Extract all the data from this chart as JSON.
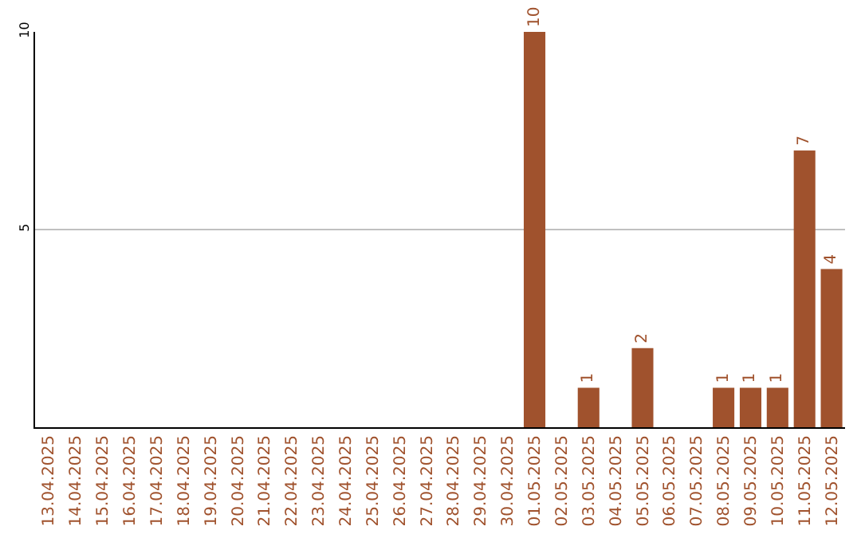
{
  "chart_data": {
    "type": "bar",
    "categories": [
      "13.04.2025",
      "14.04.2025",
      "15.04.2025",
      "16.04.2025",
      "17.04.2025",
      "18.04.2025",
      "19.04.2025",
      "20.04.2025",
      "21.04.2025",
      "22.04.2025",
      "23.04.2025",
      "24.04.2025",
      "25.04.2025",
      "26.04.2025",
      "27.04.2025",
      "28.04.2025",
      "29.04.2025",
      "30.04.2025",
      "01.05.2025",
      "02.05.2025",
      "03.05.2025",
      "04.05.2025",
      "05.05.2025",
      "06.05.2025",
      "07.05.2025",
      "08.05.2025",
      "09.05.2025",
      "10.05.2025",
      "11.05.2025",
      "12.05.2025"
    ],
    "values": [
      0,
      0,
      0,
      0,
      0,
      0,
      0,
      0,
      0,
      0,
      0,
      0,
      0,
      0,
      0,
      0,
      0,
      0,
      10,
      0,
      1,
      0,
      2,
      0,
      0,
      1,
      1,
      1,
      7,
      4
    ],
    "value_labels": [
      null,
      null,
      null,
      null,
      null,
      null,
      null,
      null,
      null,
      null,
      null,
      null,
      null,
      null,
      null,
      null,
      null,
      null,
      "10",
      null,
      "1",
      null,
      "2",
      null,
      null,
      "1",
      "1",
      "1",
      "7",
      "4"
    ],
    "color": "#a0522d",
    "ylim": [
      0,
      10
    ],
    "yticks": [
      5,
      10
    ],
    "grid": "y",
    "legend": false
  }
}
